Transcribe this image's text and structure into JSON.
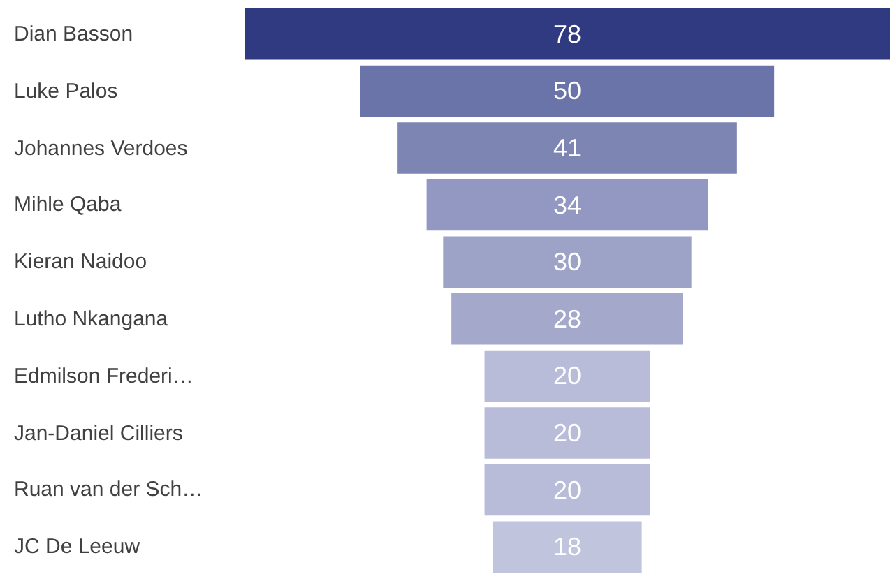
{
  "chart_data": {
    "type": "other",
    "categories": [
      "Dian Basson",
      "Luke Palos",
      "Johannes Verdoes",
      "Mihle Qaba",
      "Kieran Naidoo",
      "Lutho Nkangana",
      "Edmilson Frederi…",
      "Jan-Daniel Cilliers",
      "Ruan van der Sch…",
      "JC De Leeuw"
    ],
    "values": [
      78,
      50,
      41,
      34,
      30,
      28,
      20,
      20,
      20,
      18
    ],
    "colors": [
      "#2f3a80",
      "#6b74a8",
      "#7d85b3",
      "#9398c2",
      "#9da2c7",
      "#a4a9cc",
      "#b8bcd8",
      "#b8bcd8",
      "#b8bcd8",
      "#c0c4dd"
    ],
    "data_labels": true
  }
}
